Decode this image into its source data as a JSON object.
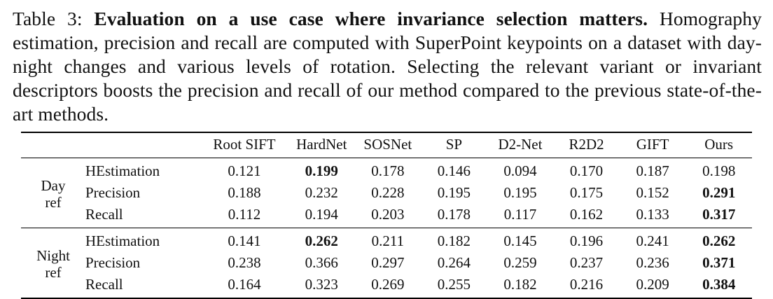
{
  "caption": {
    "prefix": "Table 3: ",
    "bold": "Evaluation on a use case where invariance selection matters.",
    "rest": " Homography estimation, precision and recall are computed with SuperPoint keypoints on a dataset with day-night changes and various levels of rotation. Selecting the relevant variant or invariant descriptors boosts the precision and recall of our method compared to the previous state-of-the-art methods."
  },
  "table": {
    "columns": [
      "Root SIFT",
      "HardNet",
      "SOSNet",
      "SP",
      "D2-Net",
      "R2D2",
      "GIFT",
      "Ours"
    ],
    "groups": [
      {
        "label_lines": [
          "Day",
          "ref"
        ],
        "rows": [
          {
            "metric": "HEstimation",
            "values": [
              "0.121",
              "0.199",
              "0.178",
              "0.146",
              "0.094",
              "0.170",
              "0.187",
              "0.198"
            ],
            "bold_indices": [
              1
            ]
          },
          {
            "metric": "Precision",
            "values": [
              "0.188",
              "0.232",
              "0.228",
              "0.195",
              "0.195",
              "0.175",
              "0.152",
              "0.291"
            ],
            "bold_indices": [
              7
            ]
          },
          {
            "metric": "Recall",
            "values": [
              "0.112",
              "0.194",
              "0.203",
              "0.178",
              "0.117",
              "0.162",
              "0.133",
              "0.317"
            ],
            "bold_indices": [
              7
            ]
          }
        ]
      },
      {
        "label_lines": [
          "Night",
          "ref"
        ],
        "rows": [
          {
            "metric": "HEstimation",
            "values": [
              "0.141",
              "0.262",
              "0.211",
              "0.182",
              "0.145",
              "0.196",
              "0.241",
              "0.262"
            ],
            "bold_indices": [
              1,
              7
            ]
          },
          {
            "metric": "Precision",
            "values": [
              "0.238",
              "0.366",
              "0.297",
              "0.264",
              "0.259",
              "0.237",
              "0.236",
              "0.371"
            ],
            "bold_indices": [
              7
            ]
          },
          {
            "metric": "Recall",
            "values": [
              "0.164",
              "0.323",
              "0.269",
              "0.255",
              "0.182",
              "0.216",
              "0.209",
              "0.384"
            ],
            "bold_indices": [
              7
            ]
          }
        ]
      }
    ]
  }
}
